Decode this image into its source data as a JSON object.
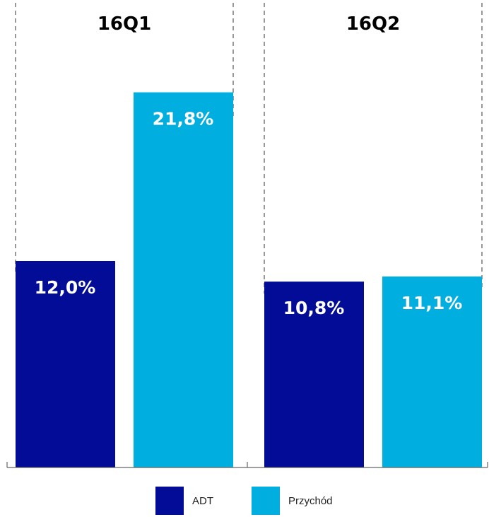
{
  "chart_data": {
    "type": "bar",
    "categories": [
      "16Q1",
      "16Q2"
    ],
    "series": [
      {
        "name": "ADT",
        "values": [
          12.0,
          10.8
        ],
        "labels": [
          "12,0%",
          "10,8%"
        ],
        "color": "#020c96"
      },
      {
        "name": "Przychód",
        "values": [
          21.8,
          11.1
        ],
        "labels": [
          "21,8%",
          "11,1%"
        ],
        "color": "#00aee0"
      }
    ],
    "ylim": [
      0,
      27
    ],
    "xlabel": "",
    "ylabel": "",
    "legend_position": "bottom-center",
    "grid": false,
    "group_separators": "dashed"
  }
}
